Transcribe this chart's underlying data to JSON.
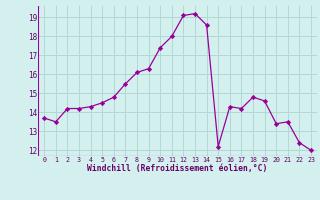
{
  "x": [
    0,
    1,
    2,
    3,
    4,
    5,
    6,
    7,
    8,
    9,
    10,
    11,
    12,
    13,
    14,
    15,
    16,
    17,
    18,
    19,
    20,
    21,
    22,
    23
  ],
  "y": [
    13.7,
    13.5,
    14.2,
    14.2,
    14.3,
    14.5,
    14.8,
    15.5,
    16.1,
    16.3,
    17.4,
    18.0,
    19.1,
    19.2,
    18.6,
    12.2,
    14.3,
    14.2,
    14.8,
    14.6,
    13.4,
    13.5,
    12.4,
    12.0
  ],
  "line_color": "#990099",
  "marker": "D",
  "marker_size": 2.2,
  "bg_color": "#d4f0ee",
  "grid_color": "#b0d8d4",
  "xlabel": "Windchill (Refroidissement éolien,°C)",
  "xlabel_color": "#660066",
  "tick_color": "#660066",
  "ylim": [
    11.7,
    19.6
  ],
  "xlim": [
    -0.5,
    23.5
  ],
  "yticks": [
    12,
    13,
    14,
    15,
    16,
    17,
    18,
    19
  ],
  "xticks": [
    0,
    1,
    2,
    3,
    4,
    5,
    6,
    7,
    8,
    9,
    10,
    11,
    12,
    13,
    14,
    15,
    16,
    17,
    18,
    19,
    20,
    21,
    22,
    23
  ]
}
